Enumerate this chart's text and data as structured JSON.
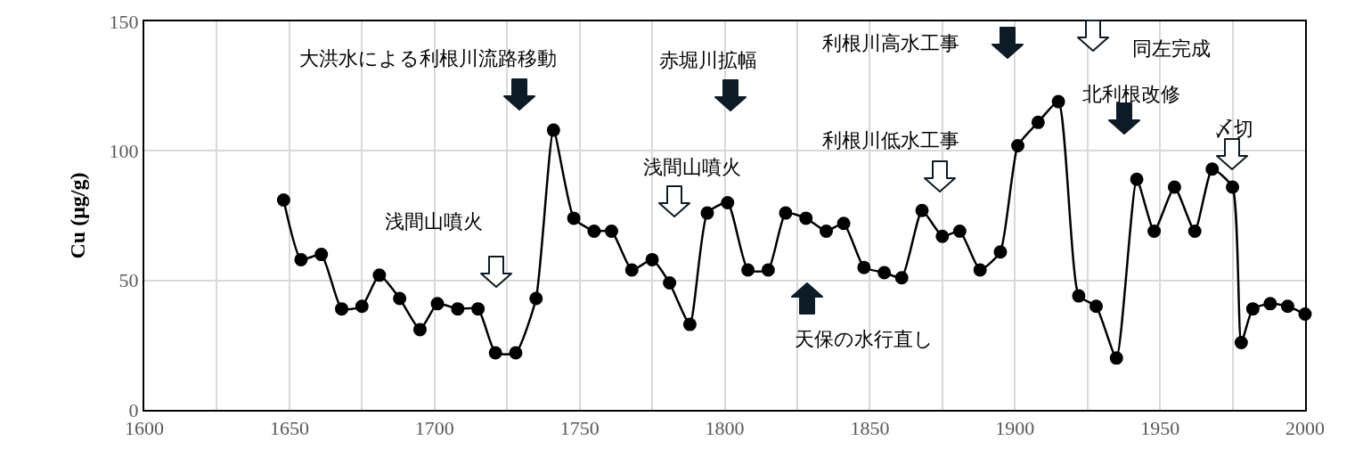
{
  "chart_data": {
    "type": "line",
    "ylabel": "Cu (μg/g)",
    "color": "#000000",
    "marker": "circle",
    "line_style": "solid",
    "grid": true,
    "x": [
      1648,
      1654,
      1661,
      1668,
      1675,
      1681,
      1688,
      1695,
      1701,
      1708,
      1715,
      1721,
      1728,
      1735,
      1741,
      1748,
      1755,
      1761,
      1768,
      1775,
      1781,
      1788,
      1794,
      1801,
      1808,
      1815,
      1821,
      1828,
      1835,
      1841,
      1848,
      1855,
      1861,
      1868,
      1875,
      1881,
      1888,
      1895,
      1901,
      1908,
      1915,
      1922,
      1928,
      1935,
      1942,
      1948,
      1955,
      1962,
      1968,
      1975,
      1978,
      1982,
      1988,
      1994,
      2000
    ],
    "values": [
      81,
      58,
      60,
      39,
      40,
      52,
      43,
      31,
      41,
      39,
      39,
      22,
      22,
      43,
      108,
      74,
      69,
      69,
      54,
      58,
      49,
      33,
      76,
      80,
      54,
      54,
      76,
      74,
      69,
      72,
      55,
      53,
      51,
      77,
      67,
      69,
      54,
      61,
      102,
      111,
      119,
      44,
      40,
      20,
      89,
      69,
      86,
      69,
      93,
      86,
      26,
      39,
      41,
      40,
      37
    ],
    "xlim": [
      1600,
      2000
    ],
    "xticks": [
      1600,
      {
        "value": 1625,
        "label": null
      },
      1650,
      {
        "value": 1675,
        "label": null
      },
      1700,
      {
        "value": 1725,
        "label": null
      },
      1750,
      {
        "value": 1775,
        "label": null
      },
      1800,
      {
        "value": 1825,
        "label": null
      },
      1850,
      {
        "value": 1875,
        "label": null
      },
      1900,
      {
        "value": 1925,
        "label": null
      },
      1950,
      {
        "value": 1975,
        "label": null
      },
      2000
    ],
    "ylim": [
      0,
      150
    ],
    "yticks": [
      0,
      50,
      100,
      150
    ],
    "annotations": [
      "大洪水による利根川流路移動",
      "浅間山噴火",
      "赤堀川拡幅",
      "浅間山噴火",
      "天保の水行直し",
      "利根川低水工事",
      "利根川高水工事",
      "同左完成",
      "北利根改修",
      "〆切"
    ]
  }
}
